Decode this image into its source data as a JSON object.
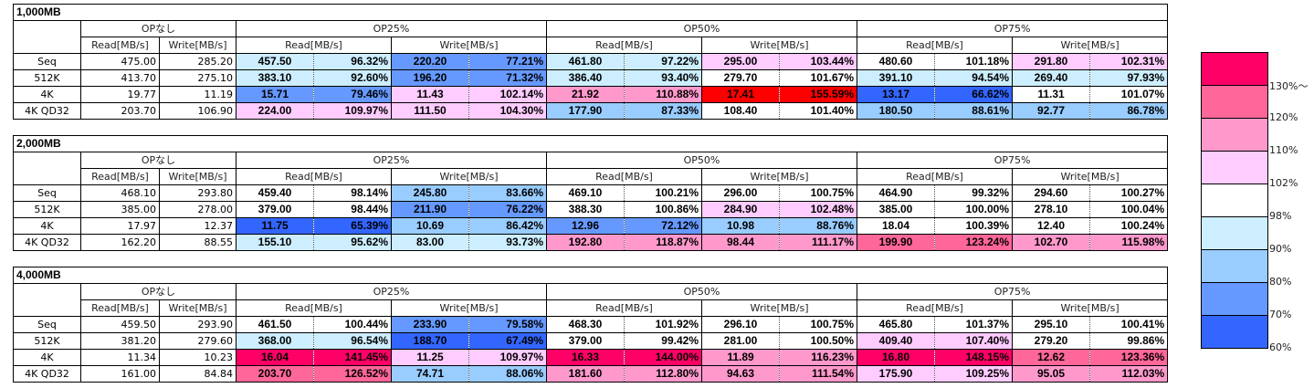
{
  "headers": {
    "base": "OPなし",
    "groups": [
      "OP25%",
      "OP50%",
      "OP75%"
    ],
    "read": "Read[MB/s]",
    "write": "Write[MB/s]"
  },
  "blocks": [
    {
      "title": "1,000MB",
      "rows": [
        {
          "label": "Seq",
          "base": [
            "475.00",
            "285.20"
          ],
          "ops": [
            [
              "457.50",
              "96.32%",
              "220.20",
              "77.21%"
            ],
            [
              "461.80",
              "97.22%",
              "295.00",
              "103.44%"
            ],
            [
              "480.60",
              "101.18%",
              "291.80",
              "102.31%"
            ]
          ]
        },
        {
          "label": "512K",
          "base": [
            "413.70",
            "275.10"
          ],
          "ops": [
            [
              "383.10",
              "92.60%",
              "196.20",
              "71.32%"
            ],
            [
              "386.40",
              "93.40%",
              "279.70",
              "101.67%"
            ],
            [
              "391.10",
              "94.54%",
              "269.40",
              "97.93%"
            ]
          ]
        },
        {
          "label": "4K",
          "base": [
            "19.77",
            "11.19"
          ],
          "ops": [
            [
              "15.71",
              "79.46%",
              "11.43",
              "102.14%"
            ],
            [
              "21.92",
              "110.88%",
              "17.41",
              "155.59%"
            ],
            [
              "13.17",
              "66.62%",
              "11.31",
              "101.07%"
            ]
          ]
        },
        {
          "label": "4K QD32",
          "base": [
            "203.70",
            "106.90"
          ],
          "ops": [
            [
              "224.00",
              "109.97%",
              "111.50",
              "104.30%"
            ],
            [
              "177.90",
              "87.33%",
              "108.40",
              "101.40%"
            ],
            [
              "180.50",
              "88.61%",
              "92.77",
              "86.78%"
            ]
          ]
        }
      ]
    },
    {
      "title": "2,000MB",
      "rows": [
        {
          "label": "Seq",
          "base": [
            "468.10",
            "293.80"
          ],
          "ops": [
            [
              "459.40",
              "98.14%",
              "245.80",
              "83.66%"
            ],
            [
              "469.10",
              "100.21%",
              "296.00",
              "100.75%"
            ],
            [
              "464.90",
              "99.32%",
              "294.60",
              "100.27%"
            ]
          ]
        },
        {
          "label": "512K",
          "base": [
            "385.00",
            "278.00"
          ],
          "ops": [
            [
              "379.00",
              "98.44%",
              "211.90",
              "76.22%"
            ],
            [
              "388.30",
              "100.86%",
              "284.90",
              "102.48%"
            ],
            [
              "385.00",
              "100.00%",
              "278.10",
              "100.04%"
            ]
          ]
        },
        {
          "label": "4K",
          "base": [
            "17.97",
            "12.37"
          ],
          "ops": [
            [
              "11.75",
              "65.39%",
              "10.69",
              "86.42%"
            ],
            [
              "12.96",
              "72.12%",
              "10.98",
              "88.76%"
            ],
            [
              "18.04",
              "100.39%",
              "12.40",
              "100.24%"
            ]
          ]
        },
        {
          "label": "4K QD32",
          "base": [
            "162.20",
            "88.55"
          ],
          "ops": [
            [
              "155.10",
              "95.62%",
              "83.00",
              "93.73%"
            ],
            [
              "192.80",
              "118.87%",
              "98.44",
              "111.17%"
            ],
            [
              "199.90",
              "123.24%",
              "102.70",
              "115.98%"
            ]
          ]
        }
      ]
    },
    {
      "title": "4,000MB",
      "rows": [
        {
          "label": "Seq",
          "base": [
            "459.50",
            "293.90"
          ],
          "ops": [
            [
              "461.50",
              "100.44%",
              "233.90",
              "79.58%"
            ],
            [
              "468.30",
              "101.92%",
              "296.10",
              "100.75%"
            ],
            [
              "465.80",
              "101.37%",
              "295.10",
              "100.41%"
            ]
          ]
        },
        {
          "label": "512K",
          "base": [
            "381.20",
            "279.60"
          ],
          "ops": [
            [
              "368.00",
              "96.54%",
              "188.70",
              "67.49%"
            ],
            [
              "379.00",
              "99.42%",
              "281.00",
              "100.50%"
            ],
            [
              "409.40",
              "107.40%",
              "279.20",
              "99.86%"
            ]
          ]
        },
        {
          "label": "4K",
          "base": [
            "11.34",
            "10.23"
          ],
          "ops": [
            [
              "16.04",
              "141.45%",
              "11.25",
              "109.97%"
            ],
            [
              "16.33",
              "144.00%",
              "11.89",
              "116.23%"
            ],
            [
              "16.80",
              "148.15%",
              "12.62",
              "123.36%"
            ]
          ]
        },
        {
          "label": "4K QD32",
          "base": [
            "161.00",
            "84.84"
          ],
          "ops": [
            [
              "203.70",
              "126.52%",
              "74.71",
              "88.06%"
            ],
            [
              "181.60",
              "112.80%",
              "94.63",
              "111.54%"
            ],
            [
              "175.90",
              "109.25%",
              "95.05",
              "112.03%"
            ]
          ]
        }
      ]
    }
  ],
  "legend": {
    "bands": [
      {
        "color": "#ff0066"
      },
      {
        "color": "#ff6699"
      },
      {
        "color": "#ff99cc"
      },
      {
        "color": "#ffccff"
      },
      {
        "color": "#ffffff"
      },
      {
        "color": "#cceeff"
      },
      {
        "color": "#99ccff"
      },
      {
        "color": "#6699ff"
      },
      {
        "color": "#3366ff"
      }
    ],
    "labels": [
      "130%〜",
      "120%",
      "110%",
      "102%",
      "98%",
      "90%",
      "80%",
      "70%",
      "60%"
    ],
    "over150_color": "#ff0000"
  }
}
